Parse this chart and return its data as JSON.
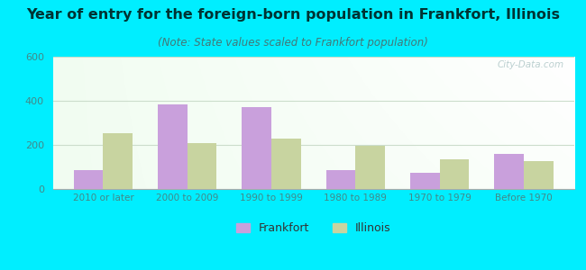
{
  "title": "Year of entry for the foreign-born population in Frankfort, Illinois",
  "subtitle": "(Note: State values scaled to Frankfort population)",
  "categories": [
    "2010 or later",
    "2000 to 2009",
    "1990 to 1999",
    "1980 to 1989",
    "1970 to 1979",
    "Before 1970"
  ],
  "frankfort_values": [
    85,
    385,
    370,
    85,
    75,
    160
  ],
  "illinois_values": [
    255,
    210,
    230,
    195,
    135,
    125
  ],
  "frankfort_color": "#c9a0dc",
  "illinois_color": "#c8d4a0",
  "background_outer": "#00eeff",
  "ylim": [
    0,
    600
  ],
  "yticks": [
    0,
    200,
    400,
    600
  ],
  "bar_width": 0.35,
  "title_fontsize": 11.5,
  "subtitle_fontsize": 8.5,
  "legend_labels": [
    "Frankfort",
    "Illinois"
  ],
  "watermark": "City-Data.com",
  "grid_color": "#ccddcc",
  "tick_label_color": "#448888",
  "title_color": "#003333"
}
